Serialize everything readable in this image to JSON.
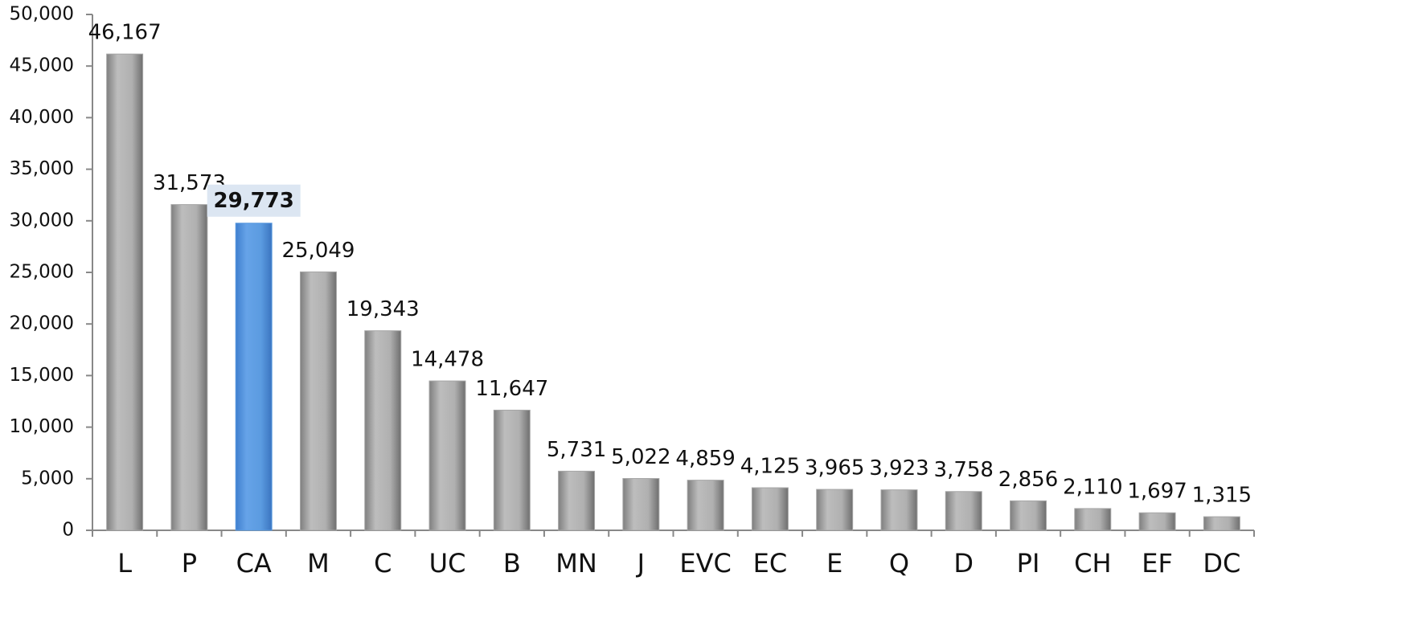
{
  "chart_data": {
    "type": "bar",
    "categories": [
      "L",
      "P",
      "CA",
      "M",
      "C",
      "UC",
      "B",
      "MN",
      "J",
      "EVC",
      "EC",
      "E",
      "Q",
      "D",
      "PI",
      "CH",
      "EF",
      "DC"
    ],
    "values": [
      46167,
      31573,
      29773,
      25049,
      19343,
      14478,
      11647,
      5731,
      5022,
      4859,
      4125,
      3965,
      3923,
      3758,
      2856,
      2110,
      1697,
      1315
    ],
    "value_labels": [
      "46,167",
      "31,573",
      "29,773",
      "25,049",
      "19,343",
      "14,478",
      "11,647",
      "5,731",
      "5,022",
      "4,859",
      "4,125",
      "3,965",
      "3,923",
      "3,758",
      "2,856",
      "2,110",
      "1,697",
      "1,315"
    ],
    "color": "#a6a6a6",
    "highlighted": 2,
    "highlight_color": "#5b9be0",
    "ylim": [
      0,
      50000
    ],
    "yticks": [
      0,
      {
        "value": 5000,
        "label": "5,000"
      },
      {
        "value": 10000,
        "label": "10,000"
      },
      {
        "value": 15000,
        "label": "15,000"
      },
      {
        "value": 20000,
        "label": "20,000"
      },
      {
        "value": 25000,
        "label": "25,000"
      },
      {
        "value": 30000,
        "label": "30,000"
      },
      {
        "value": 35000,
        "label": "35,000"
      },
      {
        "value": 40000,
        "label": "40,000"
      },
      {
        "value": 45000,
        "label": "45,000"
      },
      {
        "value": 50000,
        "label": "50,000"
      }
    ],
    "grid": false
  }
}
